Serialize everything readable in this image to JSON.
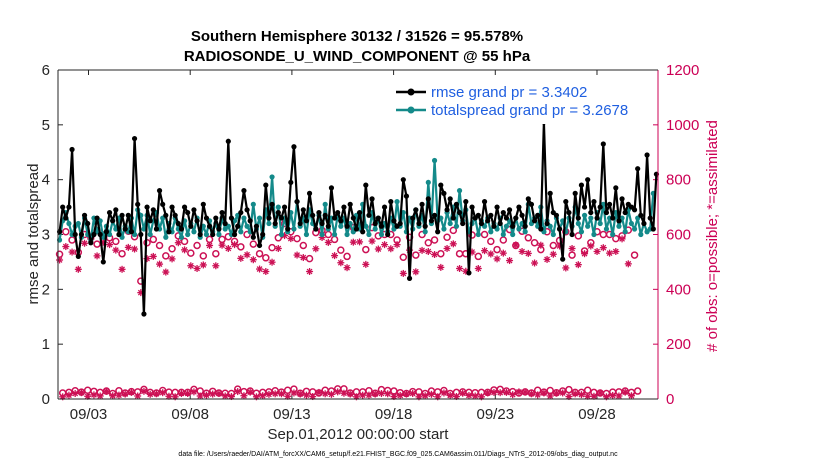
{
  "chart_data": {
    "type": "line",
    "title": "Southern Hemisphere 30132 / 31526 = 95.578%",
    "subtitle": "RADIOSONDE_U_WIND_COMPONENT @ 55 hPa",
    "xlabel": "Sep.01,2012 00:00:00 start",
    "ylabel": "rmse and totalspread",
    "ylabel_right": "# of obs: o=possible; *=assimilated",
    "footnote": "data file: /Users/raeder/DAI/ATM_forcXX/CAM6_setup/f.e21.FHIST_BGC.f09_025.CAM6assim.011/Diags_NTrS_2012-09/obs_diag_output.nc",
    "xlim": [
      1.5,
      31.0
    ],
    "ylim": [
      0,
      6
    ],
    "ylim_right": [
      0,
      1200
    ],
    "xticks": [
      "09/03",
      "09/08",
      "09/13",
      "09/18",
      "09/23",
      "09/28"
    ],
    "xtick_days": [
      3,
      8,
      13,
      18,
      23,
      28
    ],
    "yticks_left": [
      "0",
      "1",
      "2",
      "3",
      "4",
      "5",
      "6"
    ],
    "yticks_right": [
      "0",
      "200",
      "400",
      "600",
      "800",
      "1000",
      "1200"
    ],
    "legend_position": "top-right",
    "series": [
      {
        "name": "rmse grand pr = 3.3402",
        "color": "#000000",
        "axis": "left",
        "values": [
          3.05,
          3.5,
          3.3,
          3.5,
          4.55,
          3.0,
          2.6,
          3.0,
          3.35,
          3.2,
          2.85,
          3.0,
          3.3,
          3.0,
          2.5,
          3.05,
          3.4,
          3.25,
          3.45,
          3.0,
          3.35,
          3.1,
          3.35,
          3.05,
          4.75,
          3.55,
          3.0,
          1.55,
          3.5,
          3.25,
          3.45,
          3.1,
          3.8,
          3.55,
          3.35,
          3.05,
          3.5,
          3.35,
          3.2,
          3.1,
          3.5,
          3.4,
          3.15,
          3.45,
          3.25,
          3.0,
          3.55,
          3.3,
          3.15,
          3.0,
          3.3,
          3.1,
          3.4,
          3.2,
          4.7,
          3.3,
          3.0,
          3.15,
          3.4,
          3.8,
          3.45,
          3.25,
          2.95,
          3.15,
          2.8,
          3.0,
          3.9,
          3.3,
          3.55,
          3.2,
          3.4,
          3.3,
          3.5,
          3.1,
          3.95,
          4.6,
          3.6,
          3.2,
          3.45,
          3.25,
          3.75,
          3.35,
          3.1,
          3.4,
          3.2,
          3.35,
          3.15,
          3.85,
          3.3,
          3.4,
          3.25,
          3.5,
          3.15,
          3.55,
          3.3,
          3.1,
          3.4,
          3.05,
          3.9,
          3.35,
          3.65,
          3.2,
          3.3,
          3.15,
          3.5,
          3.0,
          3.6,
          3.25,
          3.15,
          3.2,
          4.0,
          3.7,
          2.2,
          3.3,
          3.45,
          3.2,
          3.55,
          3.15,
          3.65,
          3.25,
          3.35,
          3.05,
          3.9,
          3.75,
          3.45,
          3.65,
          3.3,
          3.55,
          3.4,
          3.2,
          3.6,
          2.3,
          3.5,
          3.3,
          3.35,
          3.2,
          3.6,
          3.25,
          3.35,
          3.15,
          3.5,
          3.2,
          3.4,
          3.3,
          3.45,
          3.15,
          3.3,
          3.5,
          3.35,
          3.15,
          3.65,
          3.55,
          3.25,
          3.35,
          3.1,
          5.05,
          3.2,
          3.75,
          3.4,
          3.35,
          3.1,
          2.55,
          3.6,
          3.4,
          3.0,
          3.75,
          3.3,
          3.9,
          3.5,
          4.0,
          3.4,
          3.6,
          3.3,
          3.5,
          4.65,
          3.4,
          3.55,
          3.3,
          3.85,
          3.25,
          3.65,
          3.4,
          3.55,
          3.5,
          3.45,
          4.2,
          3.35,
          3.2,
          4.45,
          3.3,
          3.1,
          4.1
        ]
      },
      {
        "name": "totalspread grand pr = 3.2678",
        "color": "#148a8a",
        "axis": "left",
        "values": [
          2.9,
          3.25,
          3.4,
          3.2,
          3.0,
          3.15,
          3.2,
          2.95,
          3.3,
          3.0,
          2.9,
          3.3,
          3.05,
          3.25,
          2.95,
          3.15,
          3.0,
          3.25,
          3.1,
          3.3,
          2.95,
          3.15,
          3.05,
          3.3,
          3.0,
          3.45,
          3.35,
          3.1,
          3.35,
          3.0,
          3.25,
          3.4,
          3.1,
          3.3,
          2.95,
          3.2,
          3.05,
          3.3,
          3.1,
          2.95,
          3.25,
          3.0,
          3.2,
          3.05,
          3.3,
          2.95,
          3.15,
          3.0,
          3.25,
          3.05,
          3.2,
          3.0,
          3.3,
          3.1,
          3.15,
          3.0,
          3.25,
          3.35,
          3.05,
          3.3,
          3.15,
          3.05,
          3.55,
          3.1,
          3.3,
          2.95,
          3.45,
          3.2,
          4.05,
          3.15,
          3.5,
          3.0,
          3.3,
          3.05,
          3.4,
          3.1,
          3.6,
          3.15,
          3.3,
          3.0,
          3.45,
          3.2,
          3.1,
          3.35,
          3.0,
          3.55,
          3.1,
          3.3,
          3.0,
          3.35,
          3.15,
          3.3,
          3.0,
          3.2,
          3.05,
          3.35,
          3.1,
          3.55,
          3.15,
          3.0,
          3.4,
          3.1,
          3.3,
          3.0,
          3.2,
          3.05,
          3.3,
          3.1,
          3.6,
          3.15,
          3.4,
          3.05,
          3.3,
          3.1,
          3.45,
          3.15,
          3.35,
          3.05,
          3.95,
          3.2,
          4.35,
          3.25,
          3.3,
          3.1,
          3.4,
          3.2,
          3.5,
          3.15,
          3.8,
          3.25,
          3.45,
          3.05,
          3.2,
          3.3,
          3.0,
          3.25,
          3.15,
          3.3,
          3.05,
          3.2,
          3.1,
          3.3,
          3.0,
          3.15,
          3.25,
          3.0,
          3.3,
          3.1,
          3.2,
          3.05,
          3.55,
          3.2,
          3.3,
          3.15,
          3.5,
          3.05,
          3.25,
          3.15,
          3.0,
          3.3,
          3.1,
          3.25,
          3.05,
          3.3,
          3.15,
          3.5,
          3.2,
          3.05,
          3.35,
          3.15,
          3.3,
          3.0,
          3.4,
          3.2,
          3.55,
          3.1,
          3.3,
          3.0,
          3.4,
          3.15,
          3.3,
          3.05,
          3.45,
          3.2,
          3.1,
          3.3,
          3.0,
          3.2,
          3.05,
          3.1,
          3.75
        ]
      },
      {
        "name": "# of obs possible",
        "marker": "o",
        "color": "#cc1155",
        "axis": "right",
        "values": [
          528,
          22,
          610,
          24,
          580,
          30,
          535,
          25,
          600,
          32,
          590,
          28,
          565,
          24,
          598,
          29,
          588,
          20,
          575,
          30,
          530,
          22,
          612,
          27,
          592,
          26,
          430,
          35,
          570,
          24,
          582,
          22,
          560,
          31,
          522,
          25,
          548,
          24,
          595,
          24,
          575,
          24,
          532,
          35,
          560,
          29,
          522,
          21,
          582,
          28,
          530,
          22,
          582,
          21,
          592,
          20,
          575,
          36,
          555,
          27,
          600,
          29,
          565,
          21,
          530,
          24,
          515,
          26,
          552,
          30,
          588,
          25,
          640,
          32,
          610,
          36,
          585,
          21,
          560,
          28,
          512,
          26,
          607,
          22,
          615,
          32,
          600,
          29,
          582,
          37,
          543,
          37,
          520,
          22,
          625,
          26,
          630,
          26,
          545,
          30,
          625,
          21,
          595,
          34,
          600,
          31,
          600,
          29,
          580,
          23,
          517,
          20,
          590,
          27,
          525,
          26,
          600,
          20,
          570,
          29,
          580,
          26,
          530,
          31,
          590,
          20,
          615,
          24,
          530,
          26,
          530,
          24,
          598,
          23,
          520,
          24,
          600,
          24,
          575,
          33,
          545,
          35,
          580,
          29,
          618,
          27,
          560,
          22,
          612,
          26,
          588,
          22,
          570,
          32,
          545,
          25,
          610,
          31,
          560,
          23,
          578,
          29,
          610,
          34,
          525,
          24,
          595,
          24,
          540,
          32,
          570,
          24,
          610,
          22,
          600,
          20,
          600,
          25,
          585,
          26,
          595,
          29,
          616,
          24,
          525,
          29
        ]
      },
      {
        "name": "# of obs assimilated",
        "marker": "*",
        "color": "#cc1155",
        "axis": "right",
        "values": [
          507,
          8,
          556,
          14,
          536,
          20,
          473,
          23,
          568,
          10,
          583,
          15,
          522,
          11,
          572,
          28,
          563,
          12,
          543,
          14,
          473,
          18,
          553,
          24,
          547,
          11,
          388,
          28,
          512,
          17,
          520,
          19,
          492,
          23,
          463,
          10,
          511,
          8,
          570,
          20,
          544,
          20,
          486,
          26,
          476,
          11,
          489,
          14,
          560,
          18,
          486,
          20,
          561,
          11,
          549,
          9,
          563,
          27,
          513,
          12,
          526,
          25,
          508,
          8,
          474,
          12,
          465,
          17,
          499,
          19,
          549,
          19,
          596,
          10,
          585,
          22,
          525,
          18,
          516,
          14,
          465,
          9,
          548,
          24,
          589,
          19,
          571,
          17,
          523,
          26,
          497,
          21,
          479,
          18,
          572,
          8,
          573,
          14,
          491,
          14,
          576,
          18,
          547,
          20,
          563,
          19,
          548,
          9,
          563,
          13,
          458,
          18,
          543,
          20,
          464,
          8,
          542,
          12,
          538,
          17,
          527,
          8,
          480,
          22,
          549,
          13,
          566,
          9,
          476,
          21,
          466,
          13,
          536,
          11,
          476,
          8,
          541,
          22,
          529,
          24,
          511,
          23,
          532,
          24,
          505,
          16,
          562,
          26,
          538,
          25,
          531,
          19,
          496,
          15,
          561,
          22,
          509,
          11,
          528,
          21,
          558,
          22,
          478,
          9,
          549,
          19,
          490,
          16,
          530,
          10,
          558,
          10,
          538,
          22,
          552,
          8,
          532,
          13,
          538,
          11,
          584,
          25,
          493,
          12
        ]
      }
    ]
  }
}
